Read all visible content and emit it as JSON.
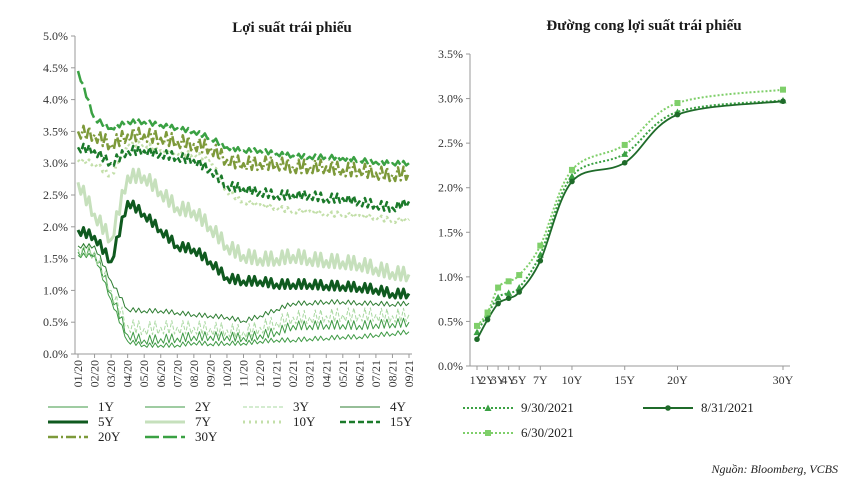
{
  "source_note": "Nguồn: Bloomberg, VCBS",
  "chart_data": [
    {
      "type": "line",
      "title": "Lợi suất trái phiếu",
      "xlabel": "",
      "ylabel": "",
      "ylim": [
        0,
        5
      ],
      "y_ticks": [
        "0.0%",
        "0.5%",
        "1.0%",
        "1.5%",
        "2.0%",
        "2.5%",
        "3.0%",
        "3.5%",
        "4.0%",
        "4.5%",
        "5.0%"
      ],
      "x_ticks": [
        "01/20",
        "02/20",
        "03/20",
        "04/20",
        "05/20",
        "06/20",
        "07/20",
        "08/20",
        "09/20",
        "10/20",
        "11/20",
        "12/20",
        "01/21",
        "02/21",
        "03/21",
        "04/21",
        "05/21",
        "06/21",
        "07/21",
        "08/21",
        "09/21"
      ],
      "legend_position": "bottom",
      "series": [
        {
          "name": "1Y",
          "color": "#3f9a45",
          "dash": "solid",
          "width": 1,
          "values": [
            1.55,
            1.55,
            0.85,
            0.2,
            0.14,
            0.14,
            0.14,
            0.18,
            0.16,
            0.17,
            0.17,
            0.2,
            0.22,
            0.22,
            0.24,
            0.25,
            0.27,
            0.27,
            0.3,
            0.32,
            0.35
          ]
        },
        {
          "name": "2Y",
          "color": "#3f9a45",
          "dash": "solid",
          "width": 1,
          "values": [
            1.6,
            1.6,
            0.95,
            0.3,
            0.22,
            0.24,
            0.25,
            0.28,
            0.28,
            0.28,
            0.26,
            0.3,
            0.35,
            0.45,
            0.45,
            0.46,
            0.46,
            0.45,
            0.47,
            0.48,
            0.5
          ]
        },
        {
          "name": "3Y",
          "color": "#a8d8a0",
          "dash": "4,2",
          "width": 1,
          "values": [
            1.65,
            1.6,
            1.0,
            0.45,
            0.4,
            0.42,
            0.42,
            0.42,
            0.4,
            0.38,
            0.35,
            0.42,
            0.5,
            0.58,
            0.58,
            0.6,
            0.62,
            0.62,
            0.62,
            0.6,
            0.62
          ]
        },
        {
          "name": "4Y",
          "color": "#2e7d32",
          "dash": "solid",
          "width": 1,
          "values": [
            1.7,
            1.7,
            1.15,
            0.7,
            0.68,
            0.68,
            0.65,
            0.62,
            0.6,
            0.58,
            0.52,
            0.6,
            0.7,
            0.8,
            0.8,
            0.82,
            0.82,
            0.8,
            0.8,
            0.78,
            0.8
          ]
        },
        {
          "name": "5Y",
          "color": "#0f5a1f",
          "dash": "solid",
          "width": 3,
          "values": [
            1.95,
            1.85,
            1.45,
            2.4,
            2.2,
            1.95,
            1.7,
            1.65,
            1.45,
            1.2,
            1.15,
            1.15,
            1.1,
            1.1,
            1.1,
            1.08,
            1.07,
            1.05,
            1.02,
            0.95,
            0.95
          ]
        },
        {
          "name": "7Y",
          "color": "#c6e0bc",
          "dash": "solid",
          "width": 3,
          "values": [
            2.7,
            2.2,
            1.8,
            2.8,
            2.8,
            2.55,
            2.3,
            2.25,
            2.0,
            1.7,
            1.55,
            1.5,
            1.5,
            1.55,
            1.5,
            1.47,
            1.45,
            1.42,
            1.35,
            1.28,
            1.25
          ]
        },
        {
          "name": "10Y",
          "color": "#c3dfa9",
          "dash": "2,4",
          "width": 3,
          "values": [
            3.05,
            3.0,
            2.8,
            3.3,
            3.3,
            3.2,
            3.15,
            3.15,
            3.05,
            2.55,
            2.4,
            2.35,
            2.3,
            2.25,
            2.25,
            2.2,
            2.2,
            2.18,
            2.15,
            2.1,
            2.12
          ]
        },
        {
          "name": "15Y",
          "color": "#1b7a2a",
          "dash": "6,3",
          "width": 2.5,
          "values": [
            3.25,
            3.2,
            3.0,
            3.2,
            3.2,
            3.15,
            3.1,
            3.05,
            2.9,
            2.65,
            2.6,
            2.55,
            2.5,
            2.5,
            2.5,
            2.45,
            2.45,
            2.4,
            2.35,
            2.3,
            2.4
          ]
        },
        {
          "name": "20Y",
          "color": "#7d9a3a",
          "dash": "10,3,2,3",
          "width": 2.5,
          "values": [
            3.5,
            3.45,
            3.3,
            3.45,
            3.45,
            3.4,
            3.35,
            3.3,
            3.25,
            3.05,
            3.0,
            3.0,
            3.0,
            2.95,
            2.95,
            2.95,
            2.9,
            2.9,
            2.85,
            2.82,
            2.85
          ]
        },
        {
          "name": "30Y",
          "color": "#3aa143",
          "dash": "14,4",
          "width": 2.5,
          "values": [
            4.45,
            3.7,
            3.55,
            3.65,
            3.65,
            3.6,
            3.55,
            3.5,
            3.4,
            3.25,
            3.2,
            3.2,
            3.15,
            3.12,
            3.1,
            3.1,
            3.08,
            3.05,
            3.02,
            3.0,
            3.0
          ]
        }
      ]
    },
    {
      "type": "line",
      "title": "Đường cong lợi suất trái phiếu",
      "xlabel": "",
      "ylabel": "",
      "ylim": [
        0,
        3.5
      ],
      "y_ticks": [
        "0.0%",
        "0.5%",
        "1.0%",
        "1.5%",
        "2.0%",
        "2.5%",
        "3.0%",
        "3.5%"
      ],
      "x_ticks": [
        "1Y",
        "2Y",
        "3Y",
        "4Y",
        "5Y",
        "7Y",
        "10Y",
        "15Y",
        "20Y",
        "30Y"
      ],
      "x_values": [
        1,
        2,
        3,
        4,
        5,
        7,
        10,
        15,
        20,
        30
      ],
      "legend_position": "bottom",
      "series": [
        {
          "name": "9/30/2021",
          "color": "#3aa143",
          "marker": "triangle",
          "dash": "2,2",
          "values": [
            0.38,
            0.58,
            0.77,
            0.82,
            0.88,
            1.25,
            2.13,
            2.38,
            2.85,
            2.98
          ]
        },
        {
          "name": "8/31/2021",
          "color": "#1f6b2a",
          "marker": "circle",
          "dash": "solid",
          "values": [
            0.3,
            0.52,
            0.7,
            0.76,
            0.83,
            1.18,
            2.07,
            2.28,
            2.82,
            2.97
          ]
        },
        {
          "name": "6/30/2021",
          "color": "#7fcf6a",
          "marker": "square",
          "dash": "2,2",
          "values": [
            0.45,
            0.6,
            0.88,
            0.95,
            1.02,
            1.35,
            2.2,
            2.48,
            2.95,
            3.1
          ]
        }
      ]
    }
  ]
}
